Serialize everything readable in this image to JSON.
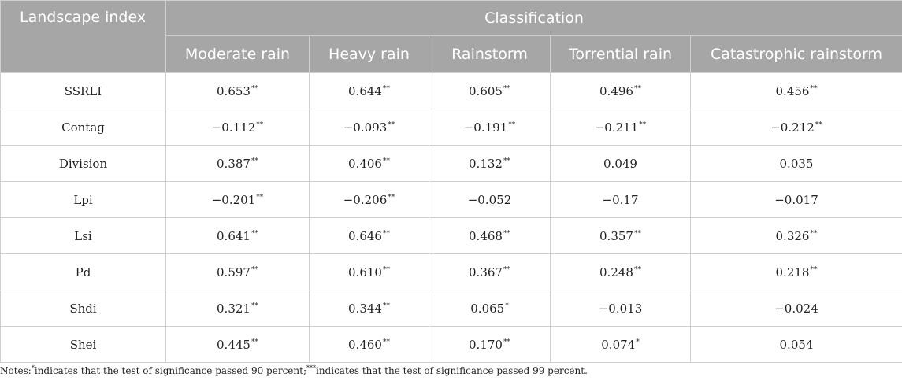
{
  "table": {
    "corner_header": "Landscape index",
    "group_header": "Classification",
    "columns": [
      "Moderate rain",
      "Heavy rain",
      "Rainstorm",
      "Torrential rain",
      "Catastrophic rainstorm"
    ],
    "rows": [
      {
        "label": "SSRLI",
        "cells": [
          {
            "v": "0.653",
            "s": "**"
          },
          {
            "v": "0.644",
            "s": "**"
          },
          {
            "v": "0.605",
            "s": "**"
          },
          {
            "v": "0.496",
            "s": "**"
          },
          {
            "v": "0.456",
            "s": "**"
          }
        ]
      },
      {
        "label": "Contag",
        "cells": [
          {
            "v": "−0.112",
            "s": "**"
          },
          {
            "v": "−0.093",
            "s": "**"
          },
          {
            "v": "−0.191",
            "s": "**"
          },
          {
            "v": "−0.211",
            "s": "**"
          },
          {
            "v": "−0.212",
            "s": "**"
          }
        ]
      },
      {
        "label": "Division",
        "cells": [
          {
            "v": "0.387",
            "s": "**"
          },
          {
            "v": "0.406",
            "s": "**"
          },
          {
            "v": "0.132",
            "s": "**"
          },
          {
            "v": "0.049",
            "s": ""
          },
          {
            "v": "0.035",
            "s": ""
          }
        ]
      },
      {
        "label": "Lpi",
        "cells": [
          {
            "v": "−0.201",
            "s": "**"
          },
          {
            "v": "−0.206",
            "s": "**"
          },
          {
            "v": "−0.052",
            "s": ""
          },
          {
            "v": "−0.17",
            "s": ""
          },
          {
            "v": "−0.017",
            "s": ""
          }
        ]
      },
      {
        "label": "Lsi",
        "cells": [
          {
            "v": "0.641",
            "s": "**"
          },
          {
            "v": "0.646",
            "s": "**"
          },
          {
            "v": "0.468",
            "s": "**"
          },
          {
            "v": "0.357",
            "s": "**"
          },
          {
            "v": "0.326",
            "s": "**"
          }
        ]
      },
      {
        "label": "Pd",
        "cells": [
          {
            "v": "0.597",
            "s": "**"
          },
          {
            "v": "0.610",
            "s": "**"
          },
          {
            "v": "0.367",
            "s": "**"
          },
          {
            "v": "0.248",
            "s": "**"
          },
          {
            "v": "0.218",
            "s": "**"
          }
        ]
      },
      {
        "label": "Shdi",
        "cells": [
          {
            "v": "0.321",
            "s": "**"
          },
          {
            "v": "0.344",
            "s": "**"
          },
          {
            "v": "0.065",
            "s": "*"
          },
          {
            "v": "−0.013",
            "s": ""
          },
          {
            "v": "−0.024",
            "s": ""
          }
        ]
      },
      {
        "label": "Shei",
        "cells": [
          {
            "v": "0.445",
            "s": "**"
          },
          {
            "v": "0.460",
            "s": "**"
          },
          {
            "v": "0.170",
            "s": "**"
          },
          {
            "v": "0.074",
            "s": "*"
          },
          {
            "v": "0.054",
            "s": ""
          }
        ]
      }
    ]
  },
  "notes": {
    "prefix": "Notes:",
    "mark1": "*",
    "text1": "indicates that the test of significance passed 90 percent;",
    "mark2": "***",
    "text2": "indicates that the test of significance passed 99 percent."
  },
  "colors": {
    "header_bg": "#a6a6a6",
    "header_text": "#ffffff",
    "border": "#cfcfcf"
  }
}
